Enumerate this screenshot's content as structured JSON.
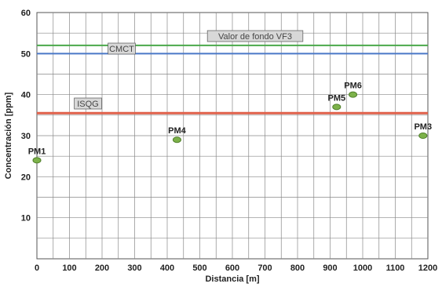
{
  "chart_data": {
    "type": "scatter",
    "title": "",
    "xlabel": "Distancia [m]",
    "ylabel": "Concentración [ppm]",
    "xlim": [
      0,
      1200
    ],
    "ylim": [
      0,
      60
    ],
    "x_ticks": [
      0,
      100,
      200,
      300,
      400,
      500,
      600,
      700,
      800,
      900,
      1000,
      1100,
      1200
    ],
    "y_ticks": [
      10,
      20,
      30,
      40,
      50,
      60
    ],
    "grid": true,
    "series": [
      {
        "points": [
          {
            "label": "PM1",
            "x": 0,
            "y": 24
          },
          {
            "label": "PM4",
            "x": 430,
            "y": 29
          },
          {
            "label": "PM5",
            "x": 920,
            "y": 37
          },
          {
            "label": "PM6",
            "x": 970,
            "y": 40
          },
          {
            "label": "PM3",
            "x": 1185,
            "y": 30
          }
        ],
        "color": "#7db24a"
      }
    ],
    "reference_lines": [
      {
        "label": "Valor de fondo VF3",
        "y": 52,
        "color": "#4aa84a"
      },
      {
        "label": "CMCT",
        "y": 50,
        "color": "#4a78c8"
      },
      {
        "label": "ISQG",
        "y": 35.5,
        "color": "#e0604a"
      }
    ]
  }
}
